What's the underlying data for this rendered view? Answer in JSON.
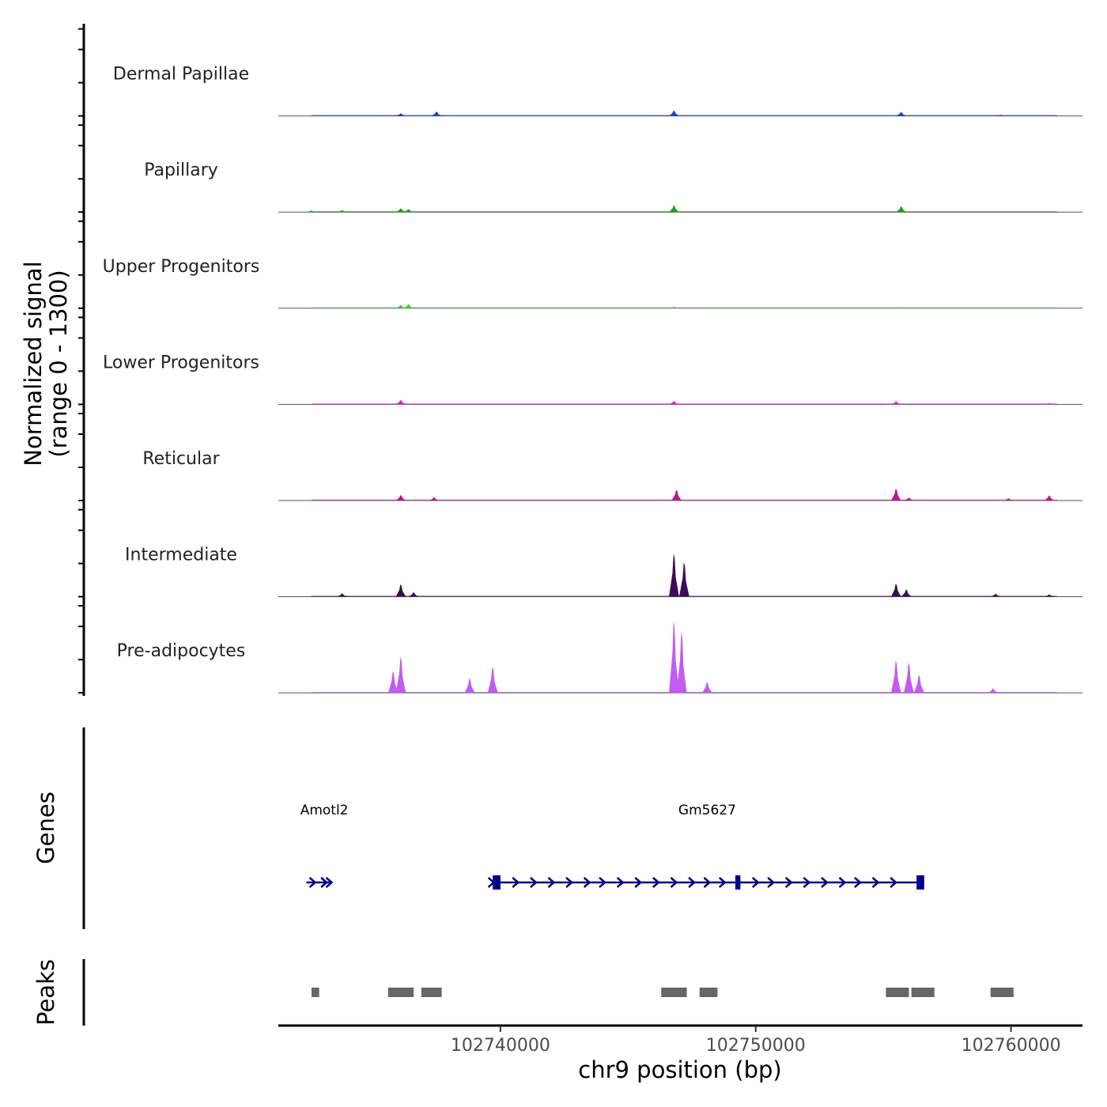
{
  "chart_data": {
    "type": "area",
    "title": "",
    "chromosome": "chr9",
    "xlabel": "chr9 position (bp)",
    "ylabel": "Normalized signal",
    "ylabel_range": "(range 0 - 1300)",
    "xlim": [
      102731300,
      102762800
    ],
    "ylim": [
      0,
      1300
    ],
    "x_ticks": [
      102740000,
      102750000,
      102760000
    ],
    "x_tick_labels": [
      "102740000",
      "102750000",
      "102760000"
    ],
    "series": [
      {
        "name": "Dermal Papillae",
        "color": "#1f3fcc",
        "peaks": [
          {
            "x": 102736100,
            "value": 35
          },
          {
            "x": 102737500,
            "value": 60
          },
          {
            "x": 102746800,
            "value": 75
          },
          {
            "x": 102755700,
            "value": 55
          },
          {
            "x": 102759600,
            "value": 15
          }
        ]
      },
      {
        "name": "Papillary",
        "color": "#1aa01a",
        "peaks": [
          {
            "x": 102732600,
            "value": 20
          },
          {
            "x": 102733800,
            "value": 25
          },
          {
            "x": 102736100,
            "value": 50
          },
          {
            "x": 102736400,
            "value": 40
          },
          {
            "x": 102746800,
            "value": 95
          },
          {
            "x": 102755700,
            "value": 80
          }
        ]
      },
      {
        "name": "Upper Progenitors",
        "color": "#4cc04c",
        "peaks": [
          {
            "x": 102736100,
            "value": 45
          },
          {
            "x": 102736400,
            "value": 55
          },
          {
            "x": 102746800,
            "value": 20
          },
          {
            "x": 102755700,
            "value": 12
          }
        ]
      },
      {
        "name": "Lower Progenitors",
        "color": "#d21fd2",
        "peaks": [
          {
            "x": 102736100,
            "value": 60
          },
          {
            "x": 102746800,
            "value": 45
          },
          {
            "x": 102755500,
            "value": 40
          },
          {
            "x": 102761500,
            "value": 15
          }
        ]
      },
      {
        "name": "Reticular",
        "color": "#b8169e",
        "peaks": [
          {
            "x": 102736100,
            "value": 75
          },
          {
            "x": 102737400,
            "value": 45
          },
          {
            "x": 102746900,
            "value": 150
          },
          {
            "x": 102755500,
            "value": 165
          },
          {
            "x": 102756000,
            "value": 40
          },
          {
            "x": 102759900,
            "value": 30
          },
          {
            "x": 102761500,
            "value": 70
          }
        ]
      },
      {
        "name": "Intermediate",
        "color": "#3c0d55",
        "peaks": [
          {
            "x": 102733800,
            "value": 45
          },
          {
            "x": 102736100,
            "value": 170
          },
          {
            "x": 102736600,
            "value": 60
          },
          {
            "x": 102746800,
            "value": 600
          },
          {
            "x": 102747200,
            "value": 480
          },
          {
            "x": 102755500,
            "value": 180
          },
          {
            "x": 102755900,
            "value": 100
          },
          {
            "x": 102759400,
            "value": 40
          },
          {
            "x": 102761500,
            "value": 30
          }
        ]
      },
      {
        "name": "Pre-adipocytes",
        "color": "#c05cf2",
        "peaks": [
          {
            "x": 102735800,
            "value": 300
          },
          {
            "x": 102736100,
            "value": 500
          },
          {
            "x": 102738800,
            "value": 200
          },
          {
            "x": 102739700,
            "value": 360
          },
          {
            "x": 102746800,
            "value": 1000
          },
          {
            "x": 102747100,
            "value": 850
          },
          {
            "x": 102748100,
            "value": 150
          },
          {
            "x": 102755500,
            "value": 450
          },
          {
            "x": 102756000,
            "value": 420
          },
          {
            "x": 102756400,
            "value": 250
          },
          {
            "x": 102759300,
            "value": 60
          }
        ]
      }
    ],
    "genes": [
      {
        "name": "Amotl2",
        "start": 102732400,
        "end": 102733400,
        "strand": "+",
        "label_x": 102733100,
        "exons": [],
        "arrows": [
          102732650,
          102733100,
          102733300
        ]
      },
      {
        "name": "Gm5627",
        "start": 102739700,
        "end": 102756600,
        "strand": "+",
        "label_x": 102748100,
        "exons": [
          [
            102739700,
            102740000
          ],
          [
            102749200,
            102749400
          ],
          [
            102756300,
            102756600
          ]
        ],
        "arrows": [
          102739650,
          102740600,
          102741300,
          102742000,
          102742700,
          102743400,
          102744000,
          102744700,
          102745400,
          102746100,
          102746800,
          102747500,
          102748100,
          102748700,
          102750000,
          102750600,
          102751300,
          102752000,
          102752700,
          102753400,
          102754000,
          102754700,
          102755400
        ]
      }
    ],
    "peaks_track_label": "Peaks",
    "genes_track_label": "Genes",
    "peak_regions": [
      [
        102732600,
        102732900
      ],
      [
        102735600,
        102736600
      ],
      [
        102736900,
        102737700
      ],
      [
        102746300,
        102747300
      ],
      [
        102747800,
        102748500
      ],
      [
        102755100,
        102756000
      ],
      [
        102756100,
        102757000
      ],
      [
        102759200,
        102760100
      ]
    ]
  }
}
